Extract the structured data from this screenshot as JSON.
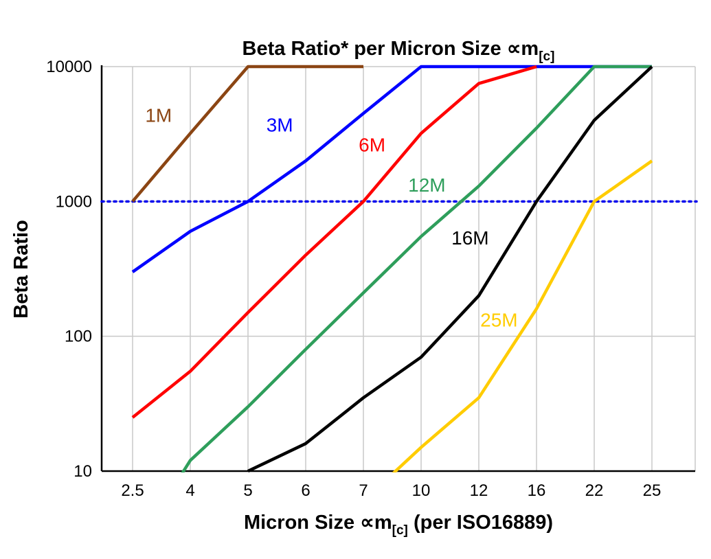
{
  "chart_data": {
    "type": "line",
    "title": {
      "prefix": "Beta Ratio* per Micron Size ",
      "symbol": "∝m",
      "sub": "[c]"
    },
    "xlabel": {
      "prefix": "Micron Size ",
      "symbol": "∝m",
      "sub": "[c]",
      "suffix": " (per ISO16889)"
    },
    "ylabel": "Beta Ratio",
    "x_categories": [
      "2.5",
      "4",
      "5",
      "6",
      "7",
      "10",
      "12",
      "16",
      "22",
      "25"
    ],
    "y_ticks": [
      "10",
      "100",
      "1000",
      "10000"
    ],
    "y_scale": "log",
    "ylim": [
      10,
      10000
    ],
    "grid": true,
    "grid_color": "#c9c9c9",
    "axis_color": "#000000",
    "reference_line": {
      "value": 1000,
      "color": "#0000ee",
      "style": "dotted"
    },
    "series": [
      {
        "name": "1M",
        "color": "#8B4513",
        "values": [
          1000,
          3200,
          10000,
          10000,
          10000,
          null,
          null,
          null,
          null,
          null
        ],
        "label": {
          "text": "1M",
          "xi": 0.45,
          "y": 3900
        }
      },
      {
        "name": "3M",
        "color": "#0000FF",
        "values": [
          300,
          600,
          1000,
          2000,
          4500,
          10000,
          10000,
          10000,
          10000,
          10000
        ],
        "label": {
          "text": "3M",
          "xi": 2.55,
          "y": 3300
        }
      },
      {
        "name": "6M",
        "color": "#FF0000",
        "values": [
          25,
          55,
          150,
          400,
          1000,
          3200,
          7500,
          10000,
          null,
          null
        ],
        "label": {
          "text": "6M",
          "xi": 4.15,
          "y": 2350
        }
      },
      {
        "name": "12M",
        "color": "#2E9E5B",
        "values": [
          2.5,
          12,
          30,
          80,
          210,
          550,
          1300,
          3500,
          10000,
          10000
        ],
        "label": {
          "text": "12M",
          "xi": 5.1,
          "y": 1180
        }
      },
      {
        "name": "16M",
        "color": "#000000",
        "values": [
          null,
          null,
          10,
          16,
          35,
          70,
          200,
          1000,
          4000,
          10000
        ],
        "label": {
          "text": "16M",
          "xi": 5.85,
          "y": 480
        }
      },
      {
        "name": "25M",
        "color": "#FFCC00",
        "values": [
          null,
          null,
          null,
          null,
          6,
          15,
          35,
          160,
          1000,
          2000
        ],
        "label": {
          "text": "25M",
          "xi": 6.35,
          "y": 118
        }
      }
    ]
  }
}
